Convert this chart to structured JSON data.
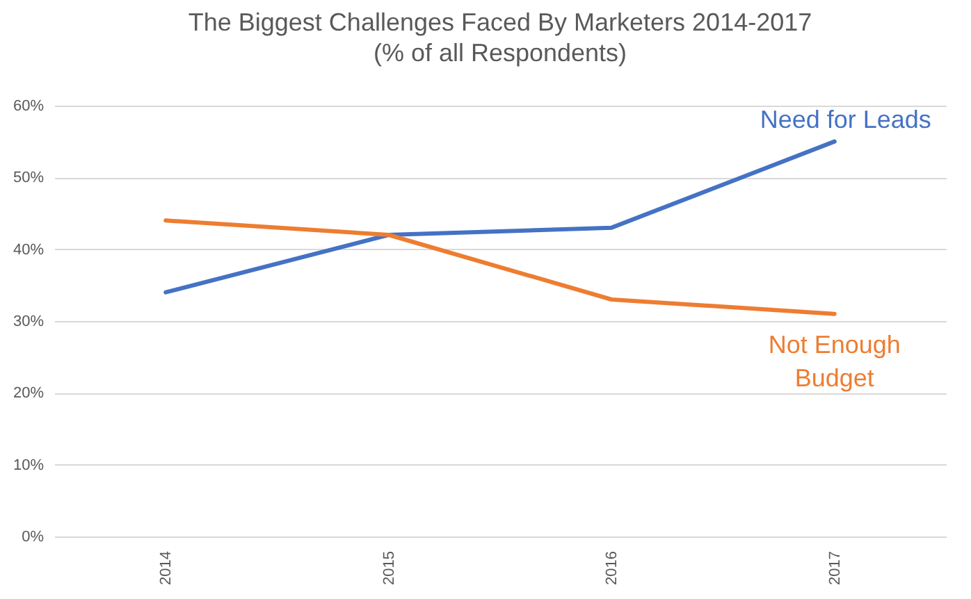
{
  "chart_data": {
    "type": "line",
    "title": "The Biggest Challenges Faced By Marketers 2014-2017",
    "subtitle": "(% of all Respondents)",
    "categories": [
      "2014",
      "2015",
      "2016",
      "2017"
    ],
    "series": [
      {
        "name": "Need for Leads",
        "color": "#4472c4",
        "values": [
          34,
          42,
          43,
          55
        ]
      },
      {
        "name": "Not Enough Budget",
        "color": "#ed7d31",
        "values": [
          44,
          42,
          33,
          31
        ]
      }
    ],
    "ylim": [
      0,
      60
    ],
    "yticks": [
      {
        "value": 0,
        "label": "0%"
      },
      {
        "value": 10,
        "label": "10%"
      },
      {
        "value": 20,
        "label": "20%"
      },
      {
        "value": 30,
        "label": "30%"
      },
      {
        "value": 40,
        "label": "40%"
      },
      {
        "value": 50,
        "label": "50%"
      },
      {
        "value": 60,
        "label": "60%"
      }
    ],
    "grid": "y",
    "legend": false
  }
}
